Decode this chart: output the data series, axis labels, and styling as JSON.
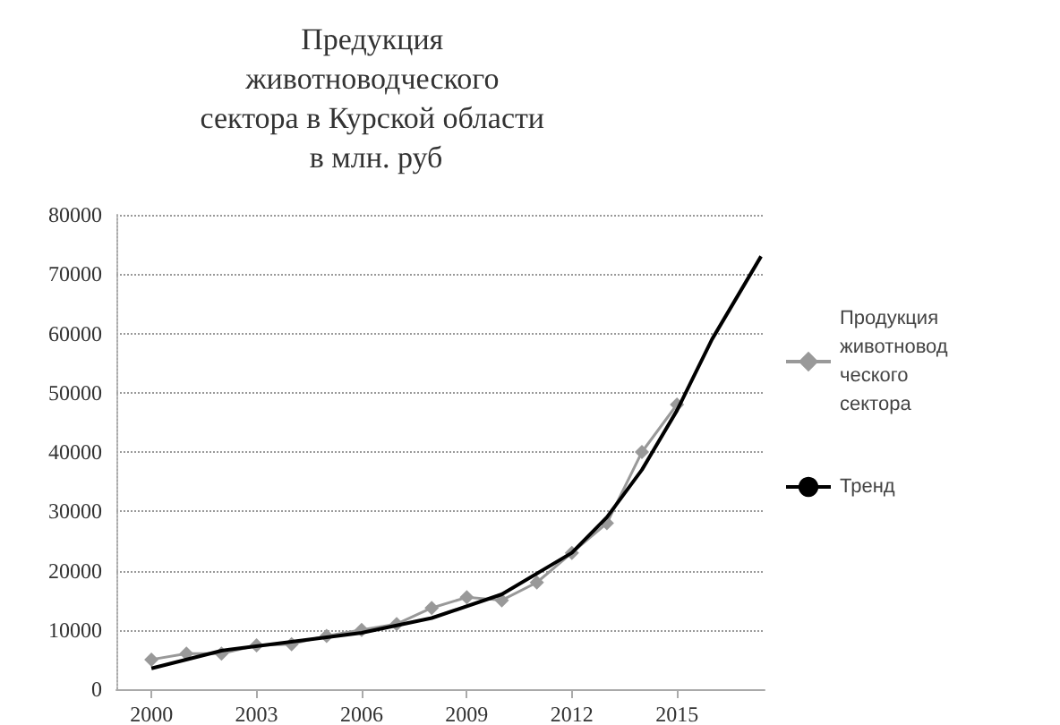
{
  "chart_data": {
    "type": "line",
    "title": "Предукция животноводческого сектора в Курской области в млн. руб",
    "xlim": [
      1999,
      2017.5
    ],
    "xticks": [
      2000,
      2003,
      2006,
      2009,
      2012,
      2015
    ],
    "ylim": [
      0,
      80000
    ],
    "yticks": [
      0,
      10000,
      20000,
      30000,
      40000,
      50000,
      60000,
      70000,
      80000
    ],
    "grid": "y",
    "legend": "right",
    "series": [
      {
        "name": "Продукция животноводческого сектора",
        "color": "#999999",
        "marker": "diamond",
        "x": [
          2000,
          2001,
          2002,
          2003,
          2004,
          2005,
          2006,
          2007,
          2008,
          2009,
          2010,
          2011,
          2012,
          2013,
          2014,
          2015
        ],
        "values": [
          5000,
          6000,
          6000,
          7400,
          7600,
          9000,
          10000,
          11000,
          13700,
          15500,
          15000,
          18000,
          23000,
          28000,
          40000,
          48000
        ]
      },
      {
        "name": "Тренд",
        "color": "#000000",
        "marker": "none",
        "x": [
          2000,
          2002,
          2004,
          2006,
          2008,
          2010,
          2012,
          2013,
          2014,
          2015,
          2016,
          2017.4
        ],
        "values": [
          3500,
          6500,
          8000,
          9500,
          12000,
          16000,
          23000,
          29000,
          37000,
          47000,
          59000,
          73000
        ]
      }
    ]
  }
}
